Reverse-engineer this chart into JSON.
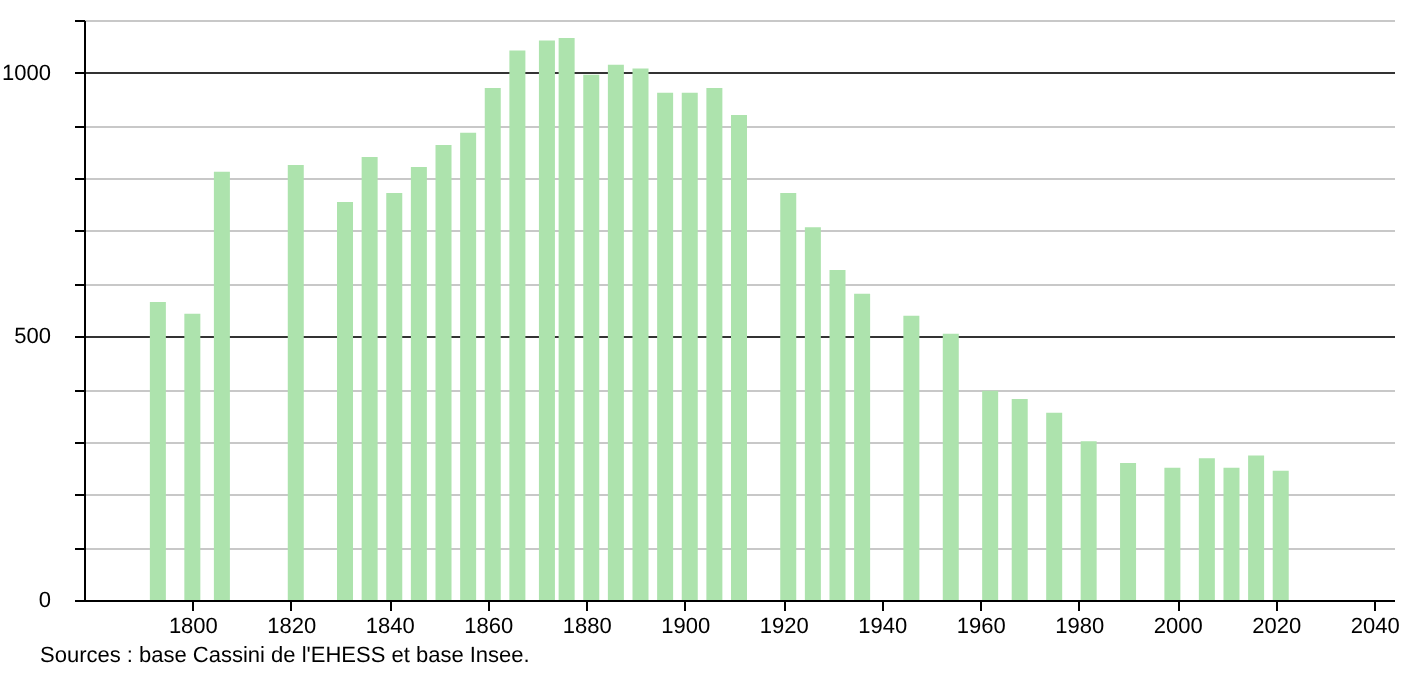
{
  "chart_data": {
    "type": "bar",
    "x": [
      1793,
      1800,
      1806,
      1821,
      1831,
      1836,
      1841,
      1846,
      1851,
      1856,
      1861,
      1866,
      1872,
      1876,
      1881,
      1886,
      1891,
      1896,
      1901,
      1906,
      1911,
      1921,
      1926,
      1931,
      1936,
      1946,
      1954,
      1962,
      1968,
      1975,
      1982,
      1990,
      1999,
      2006,
      2011,
      2016,
      2021
    ],
    "values": [
      565,
      543,
      812,
      825,
      755,
      840,
      772,
      821,
      863,
      886,
      971,
      1042,
      1061,
      1066,
      996,
      1015,
      1008,
      962,
      962,
      971,
      920,
      772,
      707,
      626,
      581,
      539,
      505,
      397,
      381,
      355,
      301,
      260,
      251,
      269,
      251,
      274,
      245
    ],
    "color": "#ade3ad",
    "xlim": [
      1778,
      2044
    ],
    "xticks": [
      1800,
      1820,
      1840,
      1860,
      1880,
      1900,
      1920,
      1940,
      1960,
      1980,
      2000,
      2020,
      2040
    ],
    "ylim": [
      0,
      1100
    ],
    "yticks": [
      0,
      {
        "value": 100,
        "label": null
      },
      {
        "value": 200,
        "label": null
      },
      {
        "value": 300,
        "label": null
      },
      {
        "value": 400,
        "label": null
      },
      500,
      {
        "value": 600,
        "label": null
      },
      {
        "value": 700,
        "label": null
      },
      {
        "value": 800,
        "label": null
      },
      {
        "value": 900,
        "label": null
      },
      1000,
      {
        "value": 1100,
        "label": null
      }
    ],
    "grid": "y",
    "annotations": [
      "Sources : base Cassini de l'EHESS et base Insee."
    ]
  }
}
